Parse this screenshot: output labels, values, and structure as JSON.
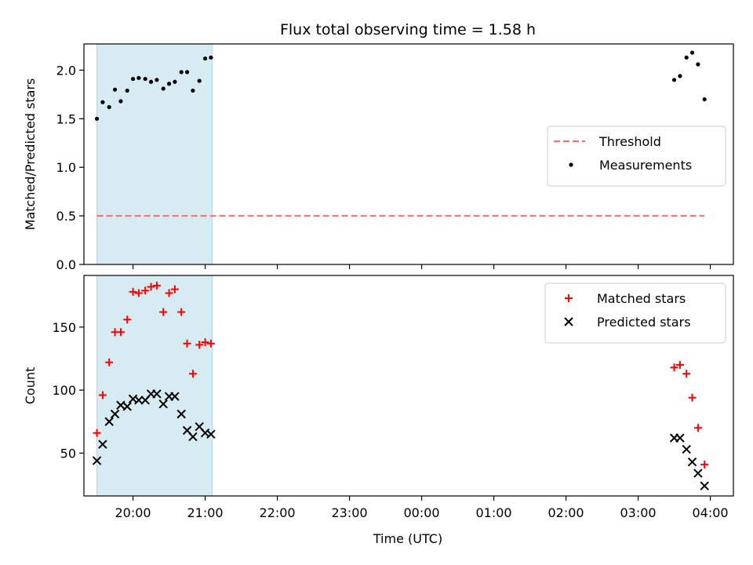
{
  "figure": {
    "title": "Flux total observing time = 1.58 h",
    "xlabel": "Time (UTC)",
    "x_ticks": [
      "20:00",
      "21:00",
      "22:00",
      "23:00",
      "00:00",
      "01:00",
      "02:00",
      "03:00",
      "04:00"
    ],
    "x_range_hours": [
      19.32,
      28.32
    ],
    "highlight_range_hours": [
      19.5,
      21.1
    ],
    "colors": {
      "highlight": "#add8e6",
      "threshold": "#ff6b6b",
      "matched": "#ff0000",
      "points": "#000000"
    }
  },
  "chart_data": [
    {
      "type": "scatter",
      "ylabel": "Matched/Predicted stars",
      "ylim": [
        0,
        2.27
      ],
      "yticks": [
        "0.0",
        "0.5",
        "1.0",
        "1.5",
        "2.0"
      ],
      "legend_location": "center right",
      "threshold": {
        "name": "Threshold",
        "value": 0.5,
        "x": [
          19.5,
          27.92
        ]
      },
      "series": [
        {
          "name": "Measurements",
          "x": [
            19.5,
            19.58,
            19.67,
            19.75,
            19.83,
            19.92,
            20.0,
            20.08,
            20.17,
            20.25,
            20.33,
            20.42,
            20.5,
            20.58,
            20.67,
            20.75,
            20.83,
            20.92,
            21.0,
            21.08,
            27.5,
            27.58,
            27.67,
            27.75,
            27.83,
            27.92
          ],
          "y": [
            1.5,
            1.67,
            1.62,
            1.8,
            1.68,
            1.79,
            1.91,
            1.92,
            1.91,
            1.88,
            1.9,
            1.81,
            1.86,
            1.88,
            1.98,
            1.98,
            1.79,
            1.89,
            2.12,
            2.13,
            1.9,
            1.94,
            2.13,
            2.18,
            2.06,
            1.7
          ]
        }
      ]
    },
    {
      "type": "scatter",
      "ylabel": "Count",
      "ylim": [
        16,
        191
      ],
      "yticks": [
        "50",
        "100",
        "150"
      ],
      "legend_location": "upper right",
      "series": [
        {
          "name": "Matched stars",
          "x": [
            19.5,
            19.58,
            19.67,
            19.75,
            19.83,
            19.92,
            20.0,
            20.08,
            20.17,
            20.25,
            20.33,
            20.42,
            20.5,
            20.58,
            20.67,
            20.75,
            20.83,
            20.92,
            21.0,
            21.08,
            27.5,
            27.58,
            27.67,
            27.75,
            27.83,
            27.92
          ],
          "y": [
            66,
            96,
            122,
            146,
            146,
            156,
            178,
            177,
            179,
            182,
            183,
            162,
            177,
            180,
            162,
            137,
            113,
            136,
            138,
            137,
            118,
            120,
            113,
            94,
            70,
            41
          ]
        },
        {
          "name": "Predicted stars",
          "x": [
            19.5,
            19.58,
            19.67,
            19.75,
            19.83,
            19.92,
            20.0,
            20.08,
            20.17,
            20.25,
            20.33,
            20.42,
            20.5,
            20.58,
            20.67,
            20.75,
            20.83,
            20.92,
            21.0,
            21.08,
            27.5,
            27.58,
            27.67,
            27.75,
            27.83,
            27.92
          ],
          "y": [
            44,
            57,
            75,
            81,
            88,
            87,
            93,
            92,
            92,
            97,
            97,
            89,
            95,
            95,
            81,
            68,
            63,
            71,
            66,
            65,
            62,
            62,
            53,
            43,
            34,
            24
          ]
        }
      ]
    }
  ]
}
